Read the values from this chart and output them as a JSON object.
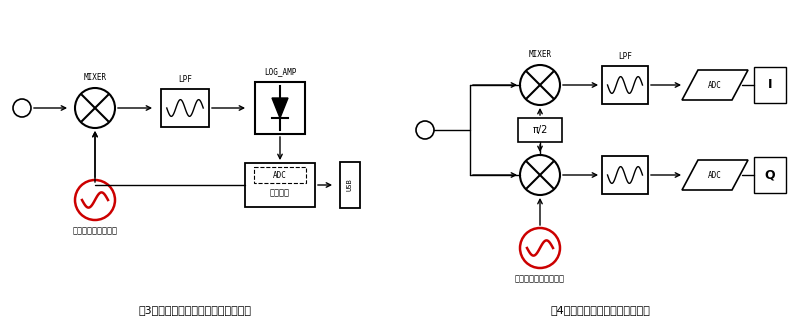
{
  "fig3_title": "図3　簡易　スペクトラムアナライザ",
  "fig4_title": "図4　ダイレクトコンバージョン",
  "synth3_label": "広帯域シンセサイザ",
  "synth4_label": "広帯域シンセサイザー",
  "mcu_label1": "ADC",
  "mcu_label2": "マイコン",
  "bg_color": "#ffffff",
  "line_color": "#000000",
  "red_color": "#cc0000"
}
